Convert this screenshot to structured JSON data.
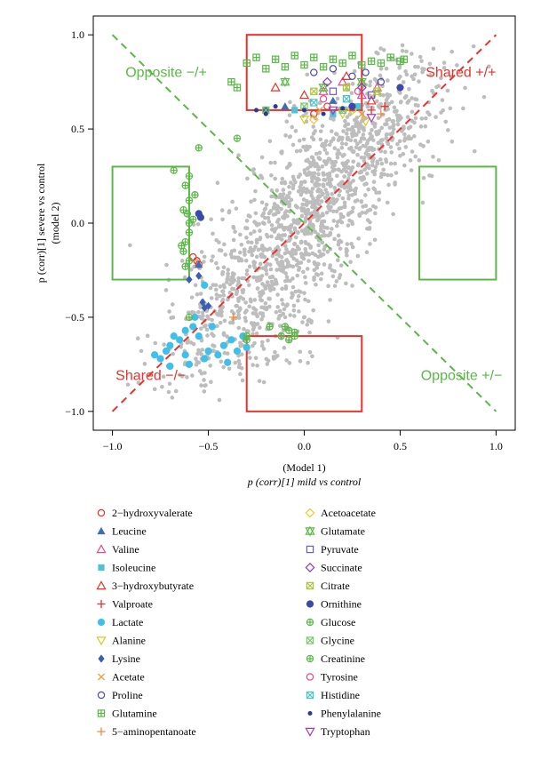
{
  "chart_data": {
    "type": "scatter",
    "xlim": [
      -1.1,
      1.1
    ],
    "ylim": [
      -1.1,
      1.1
    ],
    "xticks": [
      -1.0,
      -0.5,
      0.0,
      0.5,
      1.0
    ],
    "yticks": [
      -1.0,
      -0.5,
      0.0,
      0.5,
      1.0
    ],
    "xtick_labels": [
      "−1.0",
      "−0.5",
      "0.0",
      "0.5",
      "1.0"
    ],
    "ytick_labels": [
      "−1.0",
      "−0.5",
      "0.0",
      "0.5",
      "1.0"
    ],
    "xlabel_line1": "(Model 1)",
    "xlabel_line2": "p (corr)[1] mild vs control",
    "ylabel_line1": "p (corr)[1] severe vs control",
    "ylabel_line2": "(model 2)",
    "grid": false,
    "legend_position": "below",
    "zones": [
      {
        "label": "Opposite −/+",
        "color": "#5ab847"
      },
      {
        "label": "Shared +/+",
        "color": "#e8322b"
      },
      {
        "label": "Shared −/−",
        "color": "#e8322b"
      },
      {
        "label": "Opposite +/−",
        "color": "#5ab847"
      }
    ],
    "threshold_boxes": [
      {
        "x": [
          -0.3,
          0.3
        ],
        "y": [
          0.6,
          1.0
        ],
        "color": "#e8322b"
      },
      {
        "x": [
          -0.3,
          0.3
        ],
        "y": [
          -1.0,
          -0.6
        ],
        "color": "#e8322b"
      },
      {
        "x": [
          -1.0,
          -0.6
        ],
        "y": [
          -0.3,
          0.3
        ],
        "color": "#5ab847"
      },
      {
        "x": [
          0.6,
          1.0
        ],
        "y": [
          -0.3,
          0.3
        ],
        "color": "#5ab847"
      }
    ],
    "diagonals": [
      {
        "from": [
          -1.0,
          -1.0
        ],
        "to": [
          1.0,
          1.0
        ],
        "color": "#e8322b"
      },
      {
        "from": [
          -1.0,
          1.0
        ],
        "to": [
          1.0,
          -1.0
        ],
        "color": "#5ab847"
      }
    ],
    "background_color": "#bdbdbd",
    "series": [
      {
        "name": "2−hydroxyvalerate",
        "marker": "circle-open",
        "color": "#e8322b",
        "points": [
          [
            -0.58,
            -0.18
          ],
          [
            -0.56,
            -0.2
          ],
          [
            -0.55,
            -0.22
          ],
          [
            0.05,
            0.58
          ],
          [
            0.12,
            0.62
          ]
        ]
      },
      {
        "name": "Leucine",
        "marker": "triangle-filled",
        "color": "#3a6fb8",
        "points": [
          [
            -0.55,
            -0.22
          ],
          [
            -0.1,
            0.62
          ],
          [
            0.15,
            0.65
          ]
        ]
      },
      {
        "name": "Valine",
        "marker": "triangle-open",
        "color": "#e84a8a",
        "points": [
          [
            0.1,
            0.7
          ],
          [
            0.2,
            0.75
          ],
          [
            0.3,
            0.68
          ],
          [
            0.38,
            0.72
          ]
        ]
      },
      {
        "name": "Isoleucine",
        "marker": "square-filled",
        "color": "#4ec3d6",
        "points": [
          [
            -0.05,
            0.6
          ],
          [
            0.15,
            0.58
          ],
          [
            0.28,
            0.62
          ]
        ]
      },
      {
        "name": "3−hydroxybutyrate",
        "marker": "triangle-open",
        "color": "#e8322b",
        "points": [
          [
            -0.15,
            0.72
          ],
          [
            0.0,
            0.68
          ],
          [
            0.22,
            0.78
          ],
          [
            0.35,
            0.65
          ]
        ]
      },
      {
        "name": "Valproate",
        "marker": "plus",
        "color": "#e8322b",
        "points": [
          [
            0.35,
            0.6
          ],
          [
            0.42,
            0.62
          ]
        ]
      },
      {
        "name": "Lactate",
        "marker": "circle-filled",
        "color": "#3ec0ea",
        "points": [
          [
            -0.78,
            -0.7
          ],
          [
            -0.75,
            -0.72
          ],
          [
            -0.72,
            -0.68
          ],
          [
            -0.7,
            -0.65
          ],
          [
            -0.68,
            -0.6
          ],
          [
            -0.65,
            -0.62
          ],
          [
            -0.62,
            -0.7
          ],
          [
            -0.6,
            -0.75
          ],
          [
            -0.58,
            -0.55
          ],
          [
            -0.55,
            -0.6
          ],
          [
            -0.52,
            -0.72
          ],
          [
            -0.5,
            -0.68
          ],
          [
            -0.48,
            -0.55
          ],
          [
            -0.45,
            -0.7
          ],
          [
            -0.42,
            -0.65
          ],
          [
            -0.4,
            -0.74
          ],
          [
            -0.38,
            -0.62
          ],
          [
            -0.35,
            -0.68
          ],
          [
            -0.32,
            -0.6
          ],
          [
            -0.3,
            -0.66
          ],
          [
            -0.62,
            -0.57
          ],
          [
            -0.7,
            -0.76
          ],
          [
            -0.52,
            -0.33
          ],
          [
            -0.57,
            -0.5
          ]
        ]
      },
      {
        "name": "Alanine",
        "marker": "triangle-down-open",
        "color": "#d7c92c",
        "points": [
          [
            0.0,
            0.55
          ],
          [
            0.2,
            0.58
          ],
          [
            0.32,
            0.54
          ]
        ]
      },
      {
        "name": "Lysine",
        "marker": "diamond-filled",
        "color": "#3a5fb0",
        "points": [
          [
            -0.6,
            -0.3
          ],
          [
            -0.55,
            -0.28
          ],
          [
            -0.53,
            -0.42
          ],
          [
            -0.5,
            -0.44
          ],
          [
            -0.52,
            -0.45
          ]
        ]
      },
      {
        "name": "Acetate",
        "marker": "cross",
        "color": "#f29a3a",
        "points": [
          [
            0.08,
            0.6
          ],
          [
            0.3,
            0.58
          ]
        ]
      },
      {
        "name": "Proline",
        "marker": "circle-open",
        "color": "#4a4aa8",
        "points": [
          [
            0.05,
            0.8
          ],
          [
            0.15,
            0.82
          ],
          [
            0.25,
            0.78
          ],
          [
            0.32,
            0.8
          ],
          [
            0.4,
            0.75
          ]
        ]
      },
      {
        "name": "Glutamine",
        "marker": "square-cross",
        "color": "#5ab847",
        "points": [
          [
            -0.3,
            0.85
          ],
          [
            -0.25,
            0.88
          ],
          [
            -0.2,
            0.82
          ],
          [
            -0.15,
            0.87
          ],
          [
            -0.1,
            0.83
          ],
          [
            -0.05,
            0.89
          ],
          [
            0.0,
            0.84
          ],
          [
            0.05,
            0.88
          ],
          [
            0.1,
            0.83
          ],
          [
            0.15,
            0.87
          ],
          [
            0.2,
            0.85
          ],
          [
            0.25,
            0.89
          ],
          [
            0.3,
            0.84
          ],
          [
            0.35,
            0.86
          ],
          [
            0.4,
            0.85
          ],
          [
            0.45,
            0.88
          ],
          [
            0.5,
            0.86
          ],
          [
            0.52,
            0.87
          ],
          [
            -0.38,
            0.75
          ],
          [
            -0.35,
            0.72
          ]
        ]
      },
      {
        "name": "5−aminopentanoate",
        "marker": "plus",
        "color": "#f08a3a",
        "points": [
          [
            -0.37,
            -0.5
          ],
          [
            0.4,
            0.58
          ]
        ]
      },
      {
        "name": "Acetoacetate",
        "marker": "diamond-open",
        "color": "#f2c632",
        "points": [
          [
            0.05,
            0.55
          ],
          [
            0.25,
            0.6
          ]
        ]
      },
      {
        "name": "Glutamate",
        "marker": "star-open",
        "color": "#5ab847",
        "points": [
          [
            -0.1,
            0.75
          ],
          [
            0.1,
            0.72
          ],
          [
            0.3,
            0.75
          ]
        ]
      },
      {
        "name": "Pyruvate",
        "marker": "square-open",
        "color": "#6a5acd",
        "points": [
          [
            0.15,
            0.7
          ],
          [
            0.35,
            0.68
          ]
        ]
      },
      {
        "name": "Succinate",
        "marker": "diamond-open",
        "color": "#8a3ab8",
        "points": [
          [
            0.12,
            0.75
          ],
          [
            0.3,
            0.72
          ]
        ]
      },
      {
        "name": "Citrate",
        "marker": "square-x",
        "color": "#a8c83a",
        "points": [
          [
            0.05,
            0.7
          ],
          [
            0.22,
            0.72
          ],
          [
            0.38,
            0.7
          ]
        ]
      },
      {
        "name": "Ornithine",
        "marker": "circle-filled",
        "color": "#3a4aa8",
        "points": [
          [
            -0.55,
            0.05
          ],
          [
            -0.54,
            0.03
          ],
          [
            0.5,
            0.72
          ],
          [
            0.25,
            0.62
          ],
          [
            -0.2,
            0.6
          ]
        ]
      },
      {
        "name": "Glucose",
        "marker": "circle-plus",
        "color": "#5ab847",
        "points": [
          [
            -0.68,
            0.28
          ],
          [
            -0.62,
            0.2
          ],
          [
            -0.61,
            0.05
          ],
          [
            -0.6,
            0.0
          ],
          [
            -0.62,
            -0.1
          ],
          [
            -0.64,
            -0.12
          ],
          [
            -0.63,
            -0.15
          ],
          [
            -0.6,
            -0.2
          ],
          [
            -0.62,
            -0.23
          ],
          [
            -0.6,
            -0.5
          ],
          [
            -0.58,
            0.02
          ],
          [
            -0.6,
            -0.05
          ],
          [
            -0.1,
            -0.55
          ],
          [
            -0.08,
            -0.57
          ],
          [
            -0.05,
            -0.58
          ],
          [
            -0.12,
            -0.6
          ],
          [
            -0.08,
            -0.62
          ],
          [
            -0.3,
            -0.62
          ],
          [
            -0.6,
            0.12
          ],
          [
            -0.57,
            0.15
          ],
          [
            -0.35,
            0.45
          ],
          [
            -0.6,
            0.25
          ],
          [
            -0.55,
            0.4
          ],
          [
            -0.63,
            0.07
          ]
        ]
      },
      {
        "name": "Glycine",
        "marker": "square-x",
        "color": "#7ac870",
        "points": [
          [
            -0.2,
            0.6
          ],
          [
            0.0,
            0.62
          ],
          [
            0.2,
            0.6
          ]
        ]
      },
      {
        "name": "Creatinine",
        "marker": "circle-plus",
        "color": "#5ab847",
        "points": [
          [
            -0.3,
            -0.6
          ],
          [
            -0.18,
            -0.55
          ],
          [
            -0.05,
            -0.6
          ]
        ]
      },
      {
        "name": "Tyrosine",
        "marker": "circle-open",
        "color": "#e84a8a",
        "points": [
          [
            0.1,
            0.66
          ],
          [
            0.28,
            0.7
          ]
        ]
      },
      {
        "name": "Histidine",
        "marker": "square-x",
        "color": "#4ec3c6",
        "points": [
          [
            0.05,
            0.64
          ],
          [
            0.22,
            0.66
          ]
        ]
      },
      {
        "name": "Phenylalanine",
        "marker": "dot",
        "color": "#2a3a98",
        "points": [
          [
            -0.25,
            0.6
          ],
          [
            -0.2,
            0.58
          ],
          [
            -0.15,
            0.62
          ],
          [
            0.0,
            0.6
          ],
          [
            0.1,
            0.58
          ],
          [
            0.2,
            0.61
          ]
        ]
      },
      {
        "name": "Tryptophan",
        "marker": "triangle-down-open",
        "color": "#a83ab8",
        "points": [
          [
            0.15,
            0.6
          ],
          [
            0.35,
            0.56
          ]
        ]
      }
    ]
  },
  "legend": {
    "left": [
      "2−hydroxyvalerate",
      "Leucine",
      "Valine",
      "Isoleucine",
      "3−hydroxybutyrate",
      "Valproate",
      "Lactate",
      "Alanine",
      "Lysine",
      "Acetate",
      "Proline",
      "Glutamine",
      "5−aminopentanoate"
    ],
    "right": [
      "Acetoacetate",
      "Glutamate",
      "Pyruvate",
      "Succinate",
      "Citrate",
      "Ornithine",
      "Glucose",
      "Glycine",
      "Creatinine",
      "Tyrosine",
      "Histidine",
      "Phenylalanine",
      "Tryptophan"
    ]
  }
}
